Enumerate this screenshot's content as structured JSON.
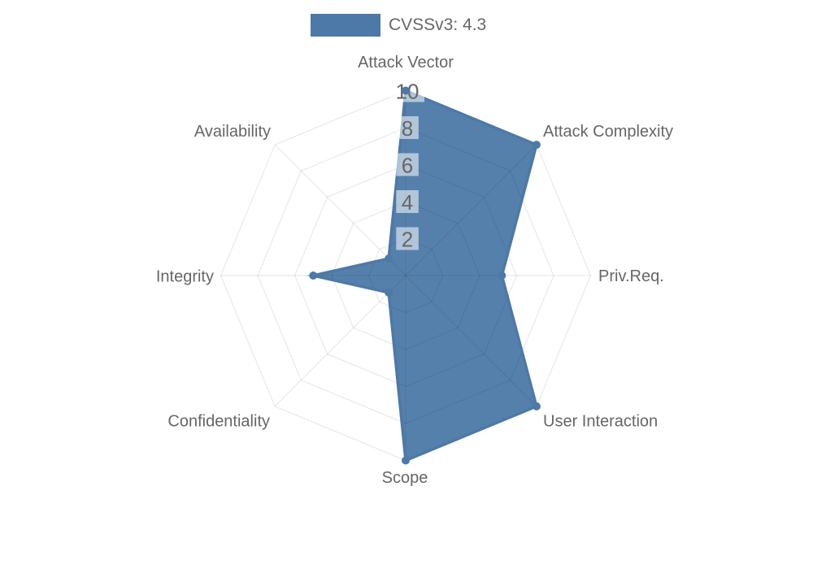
{
  "page": {
    "background_color": "#ffffff"
  },
  "legend": {
    "label": "CVSSv3: 4.3",
    "swatch_color": "#4d79a8",
    "text_color": "#666666"
  },
  "chart_data": {
    "type": "radar",
    "title": "CVSSv3: 4.3",
    "categories": [
      "Attack Vector",
      "Attack Complexity",
      "Priv.Req.",
      "User Interaction",
      "Scope",
      "Confidentiality",
      "Integrity",
      "Availability"
    ],
    "series": [
      {
        "name": "CVSSv3: 4.3",
        "values": [
          10,
          10,
          5.2,
          10,
          10,
          1.3,
          5,
          1.3
        ]
      }
    ],
    "axis": {
      "min": 0,
      "max": 10,
      "tick_labels": [
        "2",
        "4",
        "6",
        "8",
        "10"
      ],
      "tick_values": [
        2,
        4,
        6,
        8,
        10
      ],
      "grid": true,
      "grid_shape": "polygon",
      "num_axes": 8
    },
    "legend_position": "top",
    "colors": {
      "series_fill": "#4d79a8",
      "series_fill_opacity": 0.95,
      "series_border": "#4d79a8",
      "point_color": "#4d79a8",
      "grid_line": "rgba(0,0,0,0.10)",
      "tick_backdrop": "rgba(255,255,255,0.55)",
      "tick_text": "#666666",
      "axis_label": "#666666"
    }
  }
}
